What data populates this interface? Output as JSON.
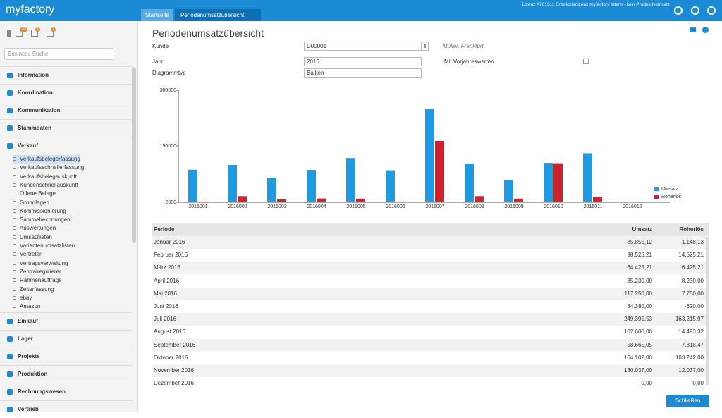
{
  "header": {
    "brand": "myfactory",
    "license": "Lizenz A761611 Entwicklerlizenz myfactory Intern - kein Produktiveinsatz",
    "tabs": [
      "Startseite",
      "Periodenumsatzübersicht"
    ]
  },
  "sidebar": {
    "badges": [
      "20",
      "1",
      "2"
    ],
    "search_placeholder": "Business Suche",
    "sections_top": [
      "Information",
      "Koordination",
      "Kommunikation",
      "Stammdaten",
      "Verkauf"
    ],
    "submenu": [
      "Verkaufsbelegerfassung",
      "Verkaufsschnellerfassung",
      "Verkaufsbelegauskunft",
      "Kundenschnellauskunft",
      "Offene Belege",
      "Grundlagen",
      "Kommissionierung",
      "Sammelrechnungen",
      "Auswertungen",
      "Umsatzlisten",
      "Variantenumsatzlisten",
      "Vertreter",
      "Vertragsverwaltung",
      "Zentralregulierer",
      "Rahmenaufträge",
      "Zeiterfassung",
      "ebay",
      "Amazon"
    ],
    "sections_bottom": [
      "Einkauf",
      "Lager",
      "Projekte",
      "Produktion",
      "Rechnungswesen",
      "Vertrieb"
    ]
  },
  "form": {
    "title": "Periodenumsatzübersicht",
    "kunde_label": "Kunde",
    "kunde_value": "D00001",
    "kunde_button": "!",
    "kunde_name": "Müller, Frankfurt",
    "jahr_label": "Jahr",
    "jahr_value": "2016",
    "diagramm_label": "Diagrammtyp",
    "diagramm_value": "Balken",
    "vorjahr_label": "Mit Vorjahreswerten"
  },
  "chart_data": {
    "type": "bar",
    "categories": [
      "2016001",
      "2016002",
      "2016003",
      "2016004",
      "2016005",
      "2016006",
      "2016007",
      "2016008",
      "2016009",
      "2016010",
      "2016011",
      "2016012"
    ],
    "series": [
      {
        "name": "Umsatz",
        "color": "#1b9be3",
        "values": [
          85855.12,
          98525.21,
          64425.21,
          85230,
          117250,
          84380,
          249395.53,
          102600,
          58665.05,
          104102,
          130037,
          0
        ]
      },
      {
        "name": "Roherlös",
        "color": "#d3212b",
        "values": [
          -1148.13,
          14525.21,
          6425.21,
          8230,
          7750,
          -620,
          163215.97,
          14493.32,
          7818.47,
          103242,
          12037,
          0
        ]
      }
    ],
    "ylim": [
      -2000,
      300000
    ],
    "yticks": [
      -2000,
      150000,
      300000
    ],
    "legend": "right"
  },
  "table": {
    "headers": [
      "Periode",
      "Umsatz",
      "Roherlös"
    ],
    "rows": [
      [
        "Januar 2016",
        "85.855,12",
        "-1.148,13"
      ],
      [
        "Februar 2016",
        "98.525,21",
        "14.525,21"
      ],
      [
        "März 2016",
        "64.425,21",
        "6.425,21"
      ],
      [
        "April 2016",
        "85.230,00",
        "8.230,00"
      ],
      [
        "Mai 2016",
        "117.250,00",
        "7.750,00"
      ],
      [
        "Juni 2016",
        "84.380,00",
        "-620,00"
      ],
      [
        "Juli 2016",
        "249.395,53",
        "163.215,97"
      ],
      [
        "August 2016",
        "102.600,00",
        "14.493,32"
      ],
      [
        "September 2016",
        "58.665,05",
        "7.818,47"
      ],
      [
        "Oktober 2016",
        "104.102,00",
        "103.242,00"
      ],
      [
        "November 2016",
        "130.037,00",
        "12.037,00"
      ],
      [
        "Dezember 2016",
        "0,00",
        "0,00"
      ]
    ]
  },
  "button": "Schließen"
}
